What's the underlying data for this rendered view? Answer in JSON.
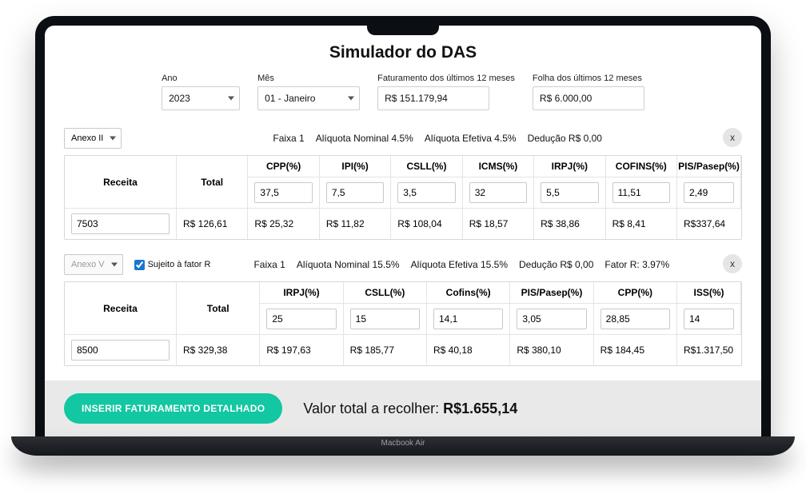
{
  "title": "Simulador do DAS",
  "filters": {
    "year_label": "Ano",
    "year_value": "2023",
    "month_label": "Mês",
    "month_value": "01 - Janeiro",
    "revenue12_label": "Faturamento dos últimos 12 meses",
    "revenue12_value": "R$ 151.179,94",
    "payroll12_label": "Folha dos últimos 12 meses",
    "payroll12_value": "R$ 6.000,00"
  },
  "blocks": [
    {
      "anexo": "Anexo II",
      "anexo_disabled": false,
      "factor_r_checkbox": false,
      "info": {
        "faixa": "Faixa 1",
        "aliq_nominal": "Alíquota Nominal 4.5%",
        "aliq_efetiva": "Alíquota Efetiva 4.5%",
        "deducao": "Dedução R$ 0,00",
        "fator_r": ""
      },
      "receita_label": "Receita",
      "total_label": "Total",
      "columns": [
        "CPP(%)",
        "IPI(%)",
        "CSLL(%)",
        "ICMS(%)",
        "IRPJ(%)",
        "COFINS(%)",
        "PIS/Pasep(%)"
      ],
      "column_count": 7,
      "percent_values": [
        "37,5",
        "7,5",
        "3,5",
        "32",
        "5,5",
        "11,51",
        "2,49"
      ],
      "receita_value": "7503",
      "money_values": [
        "R$ 126,61",
        "R$ 25,32",
        "R$ 11,82",
        "R$ 108,04",
        "R$ 18,57",
        "R$ 38,86",
        "R$ 8,41"
      ],
      "row_total": "R$337,64"
    },
    {
      "anexo": "Anexo V",
      "anexo_disabled": true,
      "factor_r_checkbox": true,
      "factor_r_label": "Sujeito à fator R",
      "info": {
        "faixa": "Faixa 1",
        "aliq_nominal": "Alíquota Nominal 15.5%",
        "aliq_efetiva": "Alíquota Efetiva 15.5%",
        "deducao": "Dedução R$ 0,00",
        "fator_r": "Fator R: 3.97%"
      },
      "receita_label": "Receita",
      "total_label": "Total",
      "columns": [
        "IRPJ(%)",
        "CSLL(%)",
        "Cofins(%)",
        "PIS/Pasep(%)",
        "CPP(%)",
        "ISS(%)"
      ],
      "column_count": 6,
      "percent_values": [
        "25",
        "15",
        "14,1",
        "3,05",
        "28,85",
        "14"
      ],
      "receita_value": "8500",
      "money_values": [
        "R$ 329,38",
        "R$ 197,63",
        "R$ 185,77",
        "R$ 40,18",
        "R$ 380,10",
        "R$ 184,45"
      ],
      "row_total": "R$1.317,50"
    }
  ],
  "footer": {
    "button": "INSERIR FATURAMENTO DETALHADO",
    "total_label": "Valor total a recolher: ",
    "total_value": "R$1.655,14"
  },
  "device_label": "Macbook Air",
  "colors": {
    "accent": "#12c7a1",
    "frame": "#0b0e12",
    "footer_bg": "#e9e9e9",
    "border": "#d8d8d8"
  }
}
